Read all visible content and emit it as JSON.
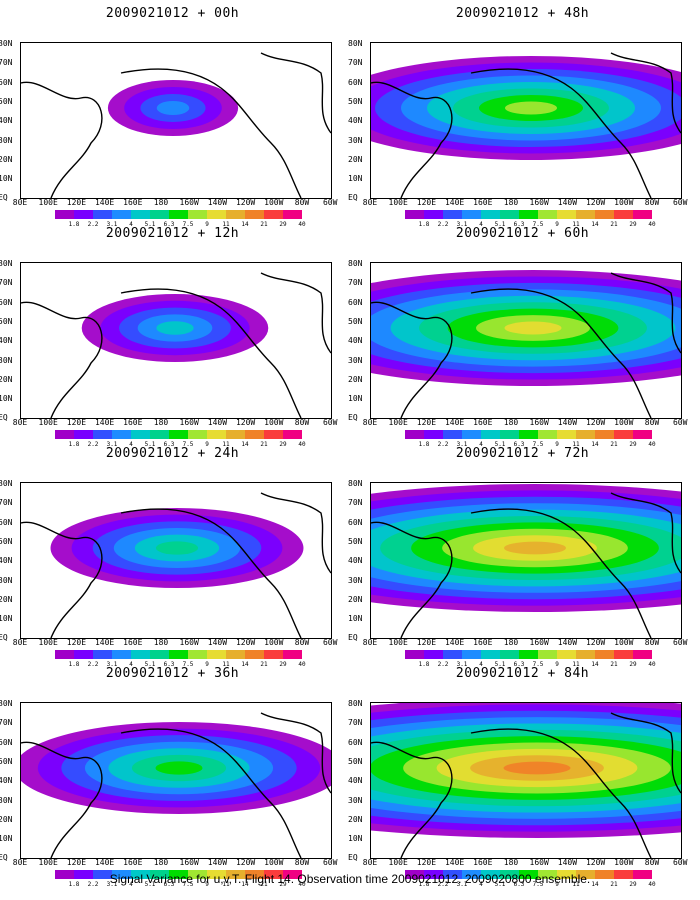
{
  "panels": [
    {
      "title": "2009021012 + 00h",
      "intensity": 1
    },
    {
      "title": "2009021012 + 12h",
      "intensity": 2
    },
    {
      "title": "2009021012 + 24h",
      "intensity": 3
    },
    {
      "title": "2009021012 + 36h",
      "intensity": 4
    },
    {
      "title": "2009021012 + 48h",
      "intensity": 5
    },
    {
      "title": "2009021012 + 60h",
      "intensity": 6
    },
    {
      "title": "2009021012 + 72h",
      "intensity": 7
    },
    {
      "title": "2009021012 + 84h",
      "intensity": 8
    }
  ],
  "lat_labels": [
    "80N",
    "70N",
    "60N",
    "50N",
    "40N",
    "30N",
    "20N",
    "10N",
    "EQ"
  ],
  "lon_labels": [
    "80E",
    "100E",
    "120E",
    "140E",
    "160E",
    "180",
    "160W",
    "140W",
    "120W",
    "100W",
    "80W",
    "60W"
  ],
  "colorbar": {
    "labels": [
      "1.8",
      "2.2",
      "3.1",
      "4",
      "5.1",
      "6.3",
      "7.5",
      "9",
      "11",
      "14",
      "21",
      "29",
      "40"
    ],
    "colors": [
      "#a000c8",
      "#7800ff",
      "#3250ff",
      "#1e8cff",
      "#00c8c8",
      "#00d28c",
      "#00dc00",
      "#a0e632",
      "#e6dc32",
      "#e6af2d",
      "#f08228",
      "#fa3c3c",
      "#f00082"
    ]
  },
  "footer": "Signal Variance for u,v,T. Flight 14. Observation time 2009021012. 2009020800 ensemble."
}
